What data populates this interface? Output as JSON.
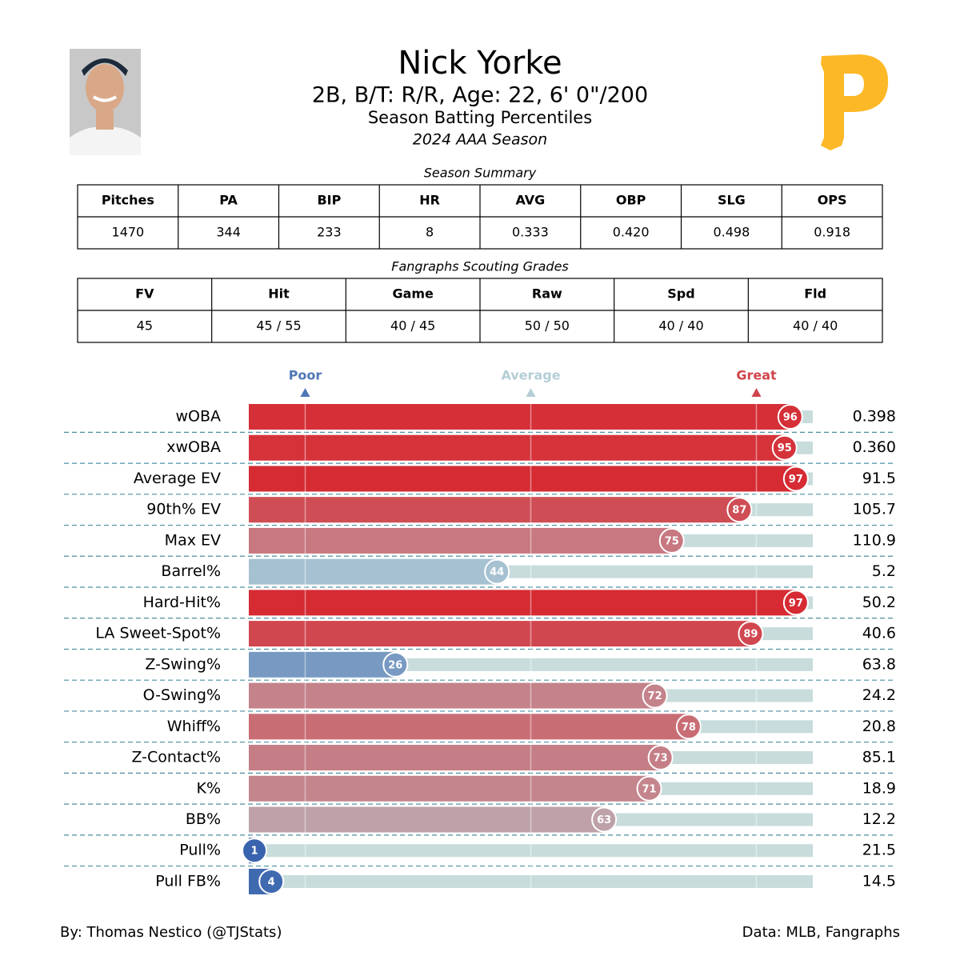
{
  "header": {
    "name": "Nick Yorke",
    "bio": "2B, B/T: R/R, Age: 22, 6' 0\"/200",
    "subtitle": "Season Batting Percentiles",
    "season": "2024 AAA Season"
  },
  "summary": {
    "title": "Season Summary",
    "columns": [
      "Pitches",
      "PA",
      "BIP",
      "HR",
      "AVG",
      "OBP",
      "SLG",
      "OPS"
    ],
    "rows": [
      [
        "1470",
        "344",
        "233",
        "8",
        "0.333",
        "0.420",
        "0.498",
        "0.918"
      ]
    ]
  },
  "grades": {
    "title": "Fangraphs Scouting Grades",
    "columns": [
      "FV",
      "Hit",
      "Game",
      "Raw",
      "Spd",
      "Fld"
    ],
    "rows": [
      [
        "45",
        "45 / 55",
        "40 / 45",
        "50 / 50",
        "40 / 40",
        "40 / 40"
      ]
    ]
  },
  "chart_data": {
    "type": "percentile_bar",
    "categories": [
      "wOBA",
      "xwOBA",
      "Average EV",
      "90th% EV",
      "Max EV",
      "Barrel%",
      "Hard-Hit%",
      "LA Sweet-Spot%",
      "Z-Swing%",
      "O-Swing%",
      "Whiff%",
      "Z-Contact%",
      "K%",
      "BB%",
      "Pull%",
      "Pull FB%"
    ],
    "values": [
      96,
      95,
      97,
      87,
      75,
      44,
      97,
      89,
      26,
      72,
      78,
      73,
      71,
      63,
      1,
      4
    ],
    "stats": [
      "0.398",
      "0.360",
      "91.5",
      "105.7",
      "110.9",
      "5.2",
      "50.2",
      "40.6",
      "63.8",
      "24.2",
      "20.8",
      "85.1",
      "18.9",
      "12.2",
      "21.5",
      "14.5"
    ],
    "xlim": [
      0,
      100
    ],
    "xticks": [
      {
        "value": 10,
        "label": "Poor"
      },
      {
        "value": 50,
        "label": "Average"
      },
      {
        "value": 90,
        "label": "Great"
      }
    ],
    "colors": {
      "low": "#3661ad",
      "mid": "#b5ced6",
      "high": "#d82129"
    },
    "track_color": "#c8dcdc"
  },
  "footer": {
    "credit": "By: Thomas Nestico (@TJStats)",
    "source": "Data: MLB, Fangraphs"
  }
}
